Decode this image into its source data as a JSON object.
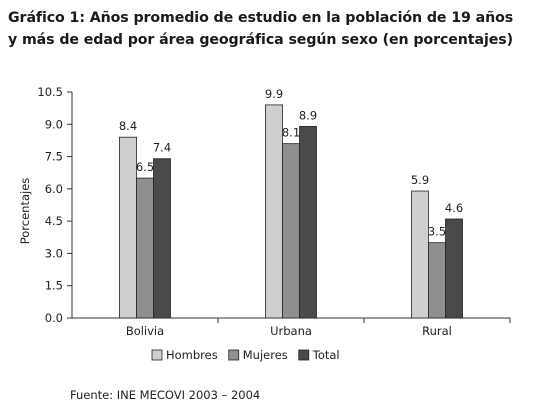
{
  "title_line1": "Gráfico 1: Años promedio de estudio en la población de 19 años",
  "title_line2": "y más de edad por área geográfica según sexo (en porcentajes)",
  "source": "Fuente: INE MECOVI 2003 – 2004",
  "colors": {
    "Hombres": "#cfcfcf",
    "Mujeres": "#8f8f8f",
    "Total": "#4a4a4a",
    "stroke": "#222222"
  },
  "chart_data": {
    "type": "bar",
    "title": "",
    "ylabel": "Porcentajes",
    "xlabel": "",
    "categories": [
      "Bolivia",
      "Urbana",
      "Rural"
    ],
    "series": [
      {
        "name": "Hombres",
        "values": [
          8.4,
          9.9,
          5.9
        ]
      },
      {
        "name": "Mujeres",
        "values": [
          6.5,
          8.1,
          3.5
        ]
      },
      {
        "name": "Total",
        "values": [
          7.4,
          8.9,
          4.6
        ]
      }
    ],
    "data_labels": [
      [
        "8.4",
        "9.9",
        "5.9"
      ],
      [
        "6.5",
        "8.1",
        "3.5"
      ],
      [
        "7.4",
        "8.9",
        "4.6"
      ]
    ],
    "yticks": [
      "0.0",
      "1.5",
      "3.0",
      "4.5",
      "6.0",
      "7.5",
      "9.0",
      "10.5"
    ],
    "ylim": [
      0,
      10.5
    ],
    "grid": false,
    "legend_position": "bottom"
  }
}
